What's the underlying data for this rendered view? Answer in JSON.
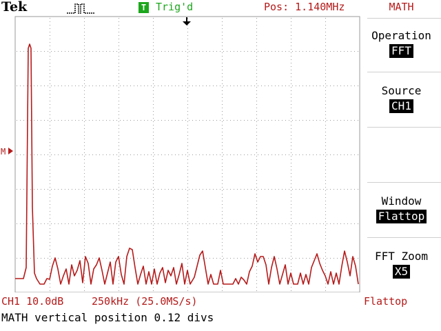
{
  "header": {
    "brand": "Tek",
    "trigger_badge": "T",
    "trigger_status": "Trig'd",
    "position": "Pos: 1.140MHz"
  },
  "marker": {
    "math_ref": "M"
  },
  "menu": {
    "title": "MATH",
    "items": [
      {
        "label": "Operation",
        "value": "FFT"
      },
      {
        "label": "Source",
        "value": "CH1"
      },
      {
        "label": "Window",
        "value": "Flattop"
      },
      {
        "label": "FFT Zoom",
        "value": "X5"
      }
    ]
  },
  "status": {
    "channel_scale": "CH1 10.0dB",
    "timebase": "250kHz (25.0MS/s)",
    "window": "Flattop",
    "message": "MATH vertical position 0.12 divs"
  },
  "colors": {
    "trace": "#b51a1a",
    "trigger_green": "#1ca71c",
    "grid": "#9a9a9a"
  },
  "icons": {
    "acquisition": "pulse-waveform-icon",
    "trigger_position": "trigger-arrow-icon",
    "math_marker": "math-reference-arrow-icon"
  }
}
